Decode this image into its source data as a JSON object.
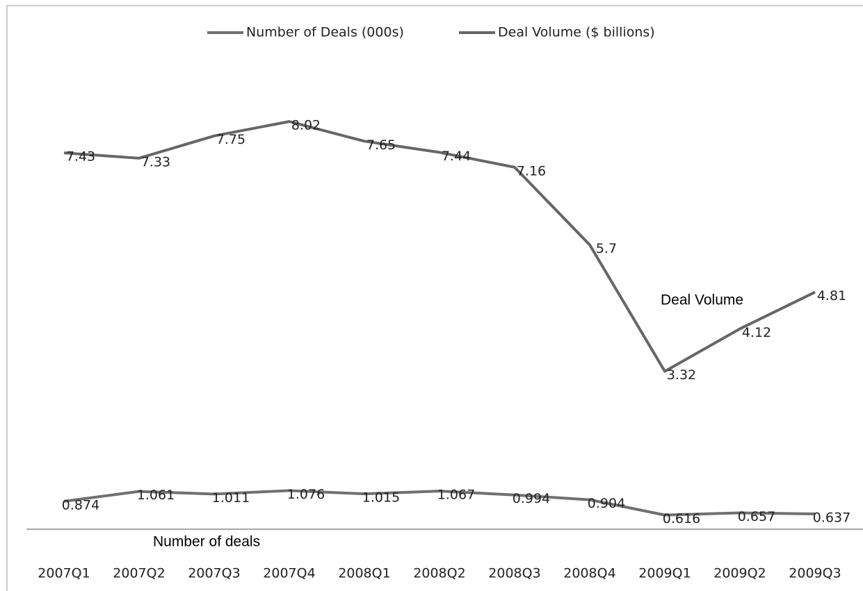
{
  "chart_data": {
    "type": "line",
    "categories": [
      "2007Q1",
      "2007Q2",
      "2007Q3",
      "2007Q4",
      "2008Q1",
      "2008Q2",
      "2008Q3",
      "2008Q4",
      "2009Q1",
      "2009Q2",
      "2009Q3"
    ],
    "series": [
      {
        "name": "Number of Deals (000s)",
        "color": "#707070",
        "values": [
          0.874,
          1.061,
          1.011,
          1.076,
          1.015,
          1.067,
          0.994,
          0.904,
          0.616,
          0.657,
          0.637
        ]
      },
      {
        "name": "Deal Volume ($ billions)",
        "color": "#666666",
        "values": [
          7.43,
          7.33,
          7.75,
          8.02,
          7.65,
          7.44,
          7.16,
          5.7,
          3.32,
          4.12,
          4.81
        ]
      }
    ],
    "annotations": [
      "Deal Volume",
      "Number of deals"
    ],
    "ylim": [
      0.35,
      9
    ],
    "legend": "top"
  }
}
